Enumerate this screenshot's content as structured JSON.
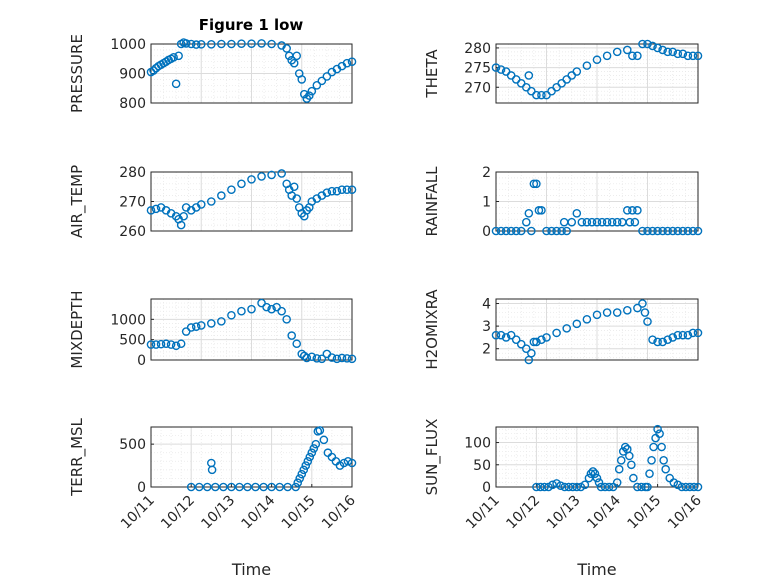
{
  "figure": {
    "title": "Figure 1 low",
    "marker_color": "#0072bd"
  },
  "chart_data": [
    {
      "type": "scatter",
      "title": "Figure 1 low",
      "ylabel": "PRESSURE",
      "xlabel": "",
      "xlim": [
        "10/12",
        "10/16"
      ],
      "ylim": [
        800,
        1000
      ],
      "yticks": [
        800,
        900,
        1000
      ],
      "xticks": [],
      "grid": true,
      "x": [
        12.0,
        12.05,
        12.1,
        12.15,
        12.2,
        12.25,
        12.3,
        12.35,
        12.4,
        12.45,
        12.5,
        12.55,
        12.6,
        12.65,
        12.7,
        12.8,
        12.9,
        13.0,
        13.2,
        13.4,
        13.6,
        13.8,
        14.0,
        14.2,
        14.4,
        14.6,
        14.7,
        14.75,
        14.8,
        14.85,
        14.9,
        14.95,
        15.0,
        15.05,
        15.1,
        15.15,
        15.2,
        15.3,
        15.4,
        15.5,
        15.6,
        15.7,
        15.8,
        15.9,
        16.0
      ],
      "y": [
        905,
        910,
        918,
        925,
        930,
        935,
        940,
        946,
        950,
        955,
        865,
        960,
        1000,
        1005,
        1002,
        1000,
        998,
        999,
        999,
        1000,
        1000,
        1001,
        1001,
        1002,
        1000,
        995,
        985,
        960,
        945,
        935,
        960,
        900,
        880,
        830,
        815,
        825,
        840,
        860,
        875,
        890,
        905,
        915,
        925,
        935,
        940
      ]
    },
    {
      "type": "scatter",
      "ylabel": "THETA",
      "xlabel": "",
      "xlim": [
        "10/12",
        "10/16"
      ],
      "ylim": [
        266,
        281
      ],
      "yticks": [
        270,
        275,
        280
      ],
      "xticks": [],
      "grid": true,
      "x": [
        12.0,
        12.1,
        12.2,
        12.3,
        12.4,
        12.5,
        12.6,
        12.65,
        12.7,
        12.8,
        12.9,
        13.0,
        13.1,
        13.2,
        13.3,
        13.4,
        13.5,
        13.6,
        13.8,
        14.0,
        14.2,
        14.4,
        14.6,
        14.7,
        14.8,
        14.9,
        15.0,
        15.1,
        15.2,
        15.3,
        15.4,
        15.5,
        15.6,
        15.7,
        15.8,
        15.9,
        16.0
      ],
      "y": [
        275,
        274.5,
        274,
        273,
        272,
        271,
        270,
        273,
        269,
        268,
        268,
        268,
        269,
        270,
        271,
        272,
        273,
        274,
        275.5,
        277,
        278,
        279,
        279.5,
        278,
        278,
        281,
        281,
        280.5,
        280,
        279.5,
        279,
        279,
        278.5,
        278.5,
        278,
        278,
        278
      ]
    },
    {
      "type": "scatter",
      "ylabel": "AIR_TEMP",
      "xlabel": "",
      "xlim": [
        "10/12",
        "10/16"
      ],
      "ylim": [
        260,
        280
      ],
      "yticks": [
        260,
        270,
        280
      ],
      "xticks": [],
      "grid": true,
      "x": [
        12.0,
        12.1,
        12.2,
        12.3,
        12.4,
        12.5,
        12.55,
        12.6,
        12.65,
        12.7,
        12.8,
        12.9,
        13.0,
        13.2,
        13.4,
        13.6,
        13.8,
        14.0,
        14.2,
        14.4,
        14.6,
        14.7,
        14.75,
        14.8,
        14.85,
        14.9,
        14.95,
        15.0,
        15.05,
        15.1,
        15.15,
        15.2,
        15.3,
        15.4,
        15.5,
        15.6,
        15.7,
        15.8,
        15.9,
        16.0
      ],
      "y": [
        267,
        267.5,
        268,
        267,
        266,
        265,
        264,
        262,
        265,
        268,
        267,
        268,
        269,
        270,
        272,
        274,
        276,
        277.5,
        278.5,
        279,
        279.5,
        276,
        274,
        272,
        275,
        271,
        268,
        266,
        265,
        267,
        268,
        270,
        271,
        272,
        273,
        273.5,
        273.5,
        274,
        274,
        274
      ]
    },
    {
      "type": "scatter",
      "ylabel": "RAINFALL",
      "xlabel": "",
      "xlim": [
        "10/12",
        "10/16"
      ],
      "ylim": [
        0,
        2
      ],
      "yticks": [
        0,
        1,
        2
      ],
      "xticks": [],
      "grid": true,
      "x": [
        12.0,
        12.1,
        12.2,
        12.3,
        12.4,
        12.5,
        12.6,
        12.65,
        12.7,
        12.75,
        12.8,
        12.85,
        12.9,
        13.0,
        13.1,
        13.2,
        13.3,
        13.35,
        13.4,
        13.5,
        13.6,
        13.7,
        13.8,
        13.9,
        14.0,
        14.1,
        14.2,
        14.3,
        14.4,
        14.5,
        14.6,
        14.65,
        14.7,
        14.75,
        14.8,
        14.9,
        15.0,
        15.1,
        15.2,
        15.3,
        15.4,
        15.5,
        15.6,
        15.7,
        15.8,
        15.9,
        16.0
      ],
      "y": [
        0,
        0,
        0,
        0,
        0,
        0,
        0.3,
        0.6,
        0,
        1.6,
        1.6,
        0.7,
        0.7,
        0,
        0,
        0,
        0,
        0.3,
        0,
        0.3,
        0.6,
        0.3,
        0.3,
        0.3,
        0.3,
        0.3,
        0.3,
        0.3,
        0.3,
        0.3,
        0.7,
        0.3,
        0.7,
        0.3,
        0.7,
        0,
        0,
        0,
        0,
        0,
        0,
        0,
        0,
        0,
        0,
        0,
        0
      ]
    },
    {
      "type": "scatter",
      "ylabel": "MIXDEPTH",
      "xlabel": "",
      "xlim": [
        "10/12",
        "10/16"
      ],
      "ylim": [
        0,
        1500
      ],
      "yticks": [
        0,
        500,
        1000
      ],
      "xticks": [],
      "grid": true,
      "x": [
        12.0,
        12.1,
        12.2,
        12.3,
        12.4,
        12.5,
        12.6,
        12.7,
        12.8,
        12.9,
        13.0,
        13.2,
        13.4,
        13.6,
        13.8,
        14.0,
        14.2,
        14.3,
        14.4,
        14.5,
        14.6,
        14.7,
        14.8,
        14.9,
        15.0,
        15.05,
        15.1,
        15.2,
        15.3,
        15.4,
        15.5,
        15.6,
        15.7,
        15.8,
        15.9,
        16.0
      ],
      "y": [
        380,
        380,
        390,
        400,
        380,
        350,
        400,
        700,
        800,
        820,
        850,
        900,
        950,
        1100,
        1200,
        1250,
        1400,
        1300,
        1250,
        1300,
        1200,
        1000,
        600,
        400,
        150,
        100,
        50,
        80,
        40,
        30,
        150,
        60,
        30,
        50,
        40,
        30
      ]
    },
    {
      "type": "scatter",
      "ylabel": "H2OMIXRA",
      "xlabel": "",
      "xlim": [
        "10/12",
        "10/16"
      ],
      "ylim": [
        1.5,
        4.2
      ],
      "yticks": [
        2,
        3,
        4
      ],
      "xticks": [],
      "grid": true,
      "x": [
        12.0,
        12.1,
        12.2,
        12.3,
        12.4,
        12.5,
        12.6,
        12.65,
        12.7,
        12.75,
        12.8,
        12.9,
        13.0,
        13.2,
        13.4,
        13.6,
        13.8,
        14.0,
        14.2,
        14.4,
        14.6,
        14.8,
        14.9,
        14.95,
        15.0,
        15.1,
        15.2,
        15.3,
        15.4,
        15.5,
        15.6,
        15.7,
        15.8,
        15.9,
        16.0
      ],
      "y": [
        2.6,
        2.6,
        2.5,
        2.6,
        2.4,
        2.2,
        2.0,
        1.5,
        1.8,
        2.3,
        2.3,
        2.4,
        2.5,
        2.7,
        2.9,
        3.1,
        3.3,
        3.5,
        3.6,
        3.6,
        3.7,
        3.8,
        4.0,
        3.6,
        3.2,
        2.4,
        2.3,
        2.3,
        2.4,
        2.5,
        2.6,
        2.6,
        2.6,
        2.7,
        2.7
      ]
    },
    {
      "type": "scatter",
      "ylabel": "TERR_MSL",
      "xlabel": "Time",
      "xlim": [
        "10/11",
        "10/16"
      ],
      "ylim": [
        0,
        700
      ],
      "yticks": [
        0,
        500
      ],
      "xticks": [
        "10/11",
        "10/12",
        "10/13",
        "10/14",
        "10/15",
        "10/16"
      ],
      "grid": true,
      "x": [
        12.0,
        12.2,
        12.4,
        12.5,
        12.52,
        12.6,
        12.8,
        13.0,
        13.2,
        13.4,
        13.6,
        13.8,
        14.0,
        14.2,
        14.4,
        14.6,
        14.65,
        14.7,
        14.75,
        14.8,
        14.85,
        14.9,
        14.95,
        15.0,
        15.05,
        15.1,
        15.15,
        15.2,
        15.3,
        15.4,
        15.5,
        15.6,
        15.7,
        15.8,
        15.9,
        16.0
      ],
      "y": [
        0,
        0,
        0,
        280,
        200,
        0,
        0,
        0,
        0,
        0,
        0,
        0,
        0,
        0,
        0,
        0,
        50,
        100,
        150,
        200,
        250,
        300,
        350,
        400,
        450,
        500,
        650,
        660,
        550,
        400,
        350,
        300,
        250,
        280,
        300,
        280
      ]
    },
    {
      "type": "scatter",
      "ylabel": "SUN_FLUX",
      "xlabel": "Time",
      "xlim": [
        "10/11",
        "10/16"
      ],
      "ylim": [
        0,
        135
      ],
      "yticks": [
        0,
        50,
        100
      ],
      "xticks": [
        "10/11",
        "10/12",
        "10/13",
        "10/14",
        "10/15",
        "10/16"
      ],
      "grid": true,
      "x": [
        12.0,
        12.1,
        12.2,
        12.3,
        12.4,
        12.5,
        12.6,
        12.7,
        12.8,
        12.9,
        13.0,
        13.1,
        13.2,
        13.3,
        13.35,
        13.4,
        13.45,
        13.5,
        13.55,
        13.6,
        13.7,
        13.8,
        13.9,
        14.0,
        14.05,
        14.1,
        14.15,
        14.2,
        14.25,
        14.3,
        14.35,
        14.4,
        14.5,
        14.6,
        14.7,
        14.75,
        14.8,
        14.85,
        14.9,
        14.95,
        15.0,
        15.05,
        15.1,
        15.15,
        15.2,
        15.3,
        15.4,
        15.5,
        15.6,
        15.7,
        15.8,
        15.9,
        16.0
      ],
      "y": [
        0,
        0,
        0,
        0,
        5,
        8,
        3,
        0,
        0,
        0,
        0,
        0,
        5,
        20,
        30,
        35,
        30,
        20,
        10,
        0,
        0,
        0,
        0,
        10,
        40,
        60,
        80,
        90,
        85,
        70,
        50,
        20,
        0,
        0,
        0,
        0,
        30,
        60,
        90,
        110,
        130,
        120,
        90,
        60,
        40,
        20,
        10,
        5,
        0,
        0,
        0,
        0,
        0
      ]
    }
  ]
}
